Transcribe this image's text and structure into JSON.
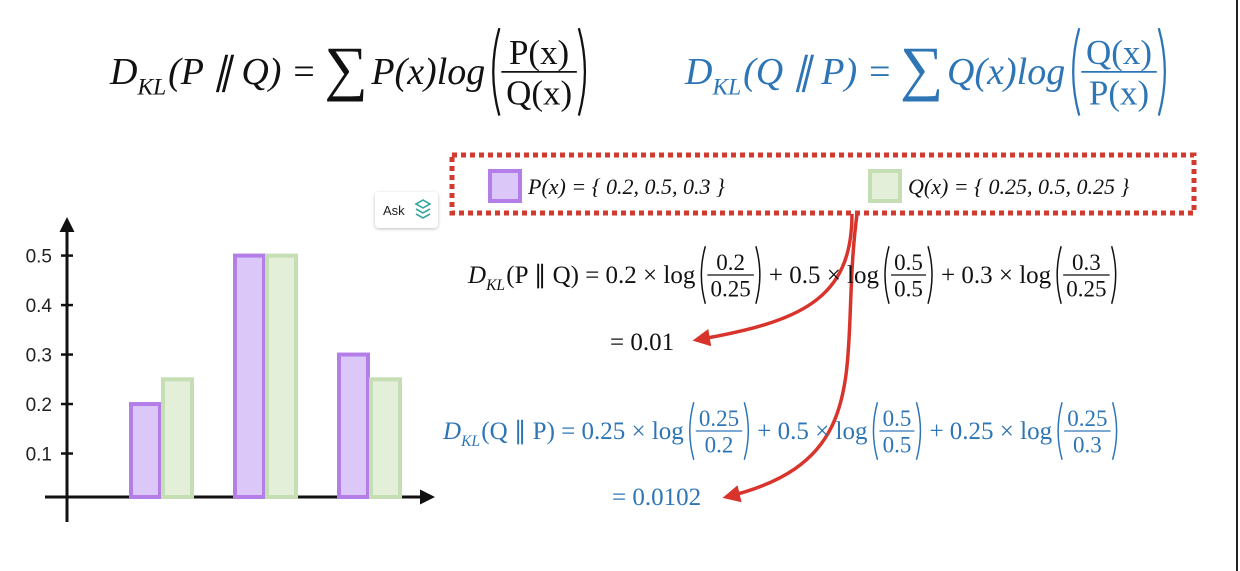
{
  "formulas": {
    "kl_pq": {
      "D": "D",
      "sub": "KL",
      "text": "(P ∥ Q) =",
      "sum": "∑",
      "term": "P(x)log",
      "num": "P(x)",
      "den": "Q(x)"
    },
    "kl_qp": {
      "D": "D",
      "sub": "KL",
      "text": "(Q ∥ P) =",
      "sum": "∑",
      "term": "Q(x)log",
      "num": "Q(x)",
      "den": "P(x)"
    }
  },
  "ask_button": "Ask",
  "chart_data": {
    "type": "bar",
    "categories": [
      null,
      null,
      null
    ],
    "series": [
      {
        "name": "P(x) = { 0.2, 0.5, 0.3 }",
        "color": "#dcc8f8",
        "edge_color": "#b47ee9",
        "values": [
          0.2,
          0.5,
          0.3
        ]
      },
      {
        "name": "Q(x) = { 0.25, 0.5, 0.25 }",
        "color": "#e3efd9",
        "edge_color": "#c6deb4",
        "values": [
          0.25,
          0.5,
          0.25
        ]
      }
    ],
    "ylim": [
      0,
      0.58
    ],
    "yticks": [
      0.1,
      0.2,
      0.3,
      0.4,
      0.5
    ]
  },
  "calculations": [
    {
      "D": "D",
      "sub": "KL",
      "terms": [
        {
          "text": "(P ∥ Q) = 0.2 × log",
          "num": "0.2",
          "den": "0.25"
        },
        {
          "text": "+ 0.5 × log",
          "num": "0.5",
          "den": "0.5"
        },
        {
          "text": "+ 0.3 × log",
          "num": "0.3",
          "den": "0.25"
        }
      ],
      "result": "= 0.01"
    },
    {
      "D": "D",
      "sub": "KL",
      "terms": [
        {
          "text": "(Q ∥ P) = 0.25 × log",
          "num": "0.25",
          "den": "0.2"
        },
        {
          "text": "+ 0.5 × log",
          "num": "0.5",
          "den": "0.5"
        },
        {
          "text": "+ 0.25 × log",
          "num": "0.25",
          "den": "0.3"
        }
      ],
      "result": "= 0.0102"
    }
  ]
}
